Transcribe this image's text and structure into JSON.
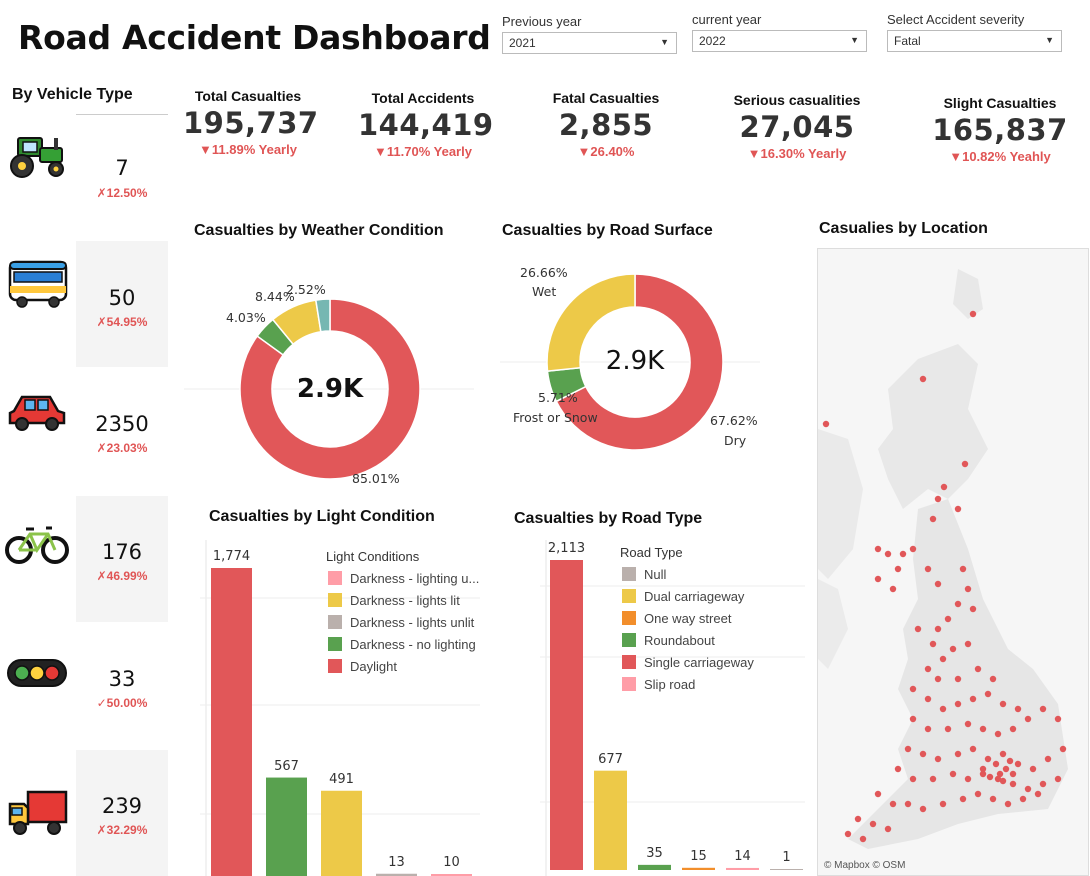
{
  "header": {
    "title": "Road Accident Dashboard"
  },
  "controls": {
    "previous_year": {
      "label": "Previous year",
      "value": "2021"
    },
    "current_year": {
      "label": "current year",
      "value": "2022"
    },
    "severity": {
      "label": "Select Accident severity",
      "value": "Fatal"
    }
  },
  "vehicle_type": {
    "title": "By Vehicle Type",
    "items": [
      {
        "icon": "tractor-icon",
        "value": "7",
        "change": "✗12.50%",
        "color": "#e05555"
      },
      {
        "icon": "bus-icon",
        "value": "50",
        "change": "✗54.95%",
        "color": "#e05555"
      },
      {
        "icon": "car-icon",
        "value": "2350",
        "change": "✗23.03%",
        "color": "#e05555"
      },
      {
        "icon": "bicycle-icon",
        "value": "176",
        "change": "✗46.99%",
        "color": "#e05555"
      },
      {
        "icon": "traffic-light-icon",
        "value": "33",
        "change": "✓50.00%",
        "color": "#e05555"
      },
      {
        "icon": "truck-icon",
        "value": "239",
        "change": "✗32.29%",
        "color": "#e05555"
      }
    ]
  },
  "kpis": [
    {
      "label": "Total Casualties",
      "value": "195,737",
      "change": "▼11.89% Yearly"
    },
    {
      "label": "Total Accidents",
      "value": "144,419",
      "change": "▼11.70% Yearly"
    },
    {
      "label": "Fatal Casualties",
      "value": "2,855",
      "change": "▼26.40%"
    },
    {
      "label": "Serious casualities",
      "value": "27,045",
      "change": "▼16.30% Yearly"
    },
    {
      "label": "Slight Casualties",
      "value": "165,837",
      "change": "▼10.82% Yeahly"
    }
  ],
  "colors": {
    "red": "#e15759",
    "yellow": "#edc948",
    "green": "#59a14f",
    "teal": "#76b7b2",
    "gray": "#bab0ac",
    "orange": "#f28e2b",
    "pink": "#ff9da7",
    "accent_text": "#e05555"
  },
  "charts": {
    "weather": {
      "title": "Casualties by Weather Condition",
      "center": "2.9K"
    },
    "surface": {
      "title": "Casualties by Road Surface",
      "center": "2.9K"
    },
    "light": {
      "title": "Casualties by Light Condition",
      "legend_title": "Light Conditions"
    },
    "road_type": {
      "title": "Casualties by Road Type",
      "legend_title": "Road Type"
    },
    "location": {
      "title": "Casualies by Location",
      "attribution": "© Mapbox  © OSM"
    }
  },
  "chart_data": [
    {
      "type": "pie",
      "title": "Casualties by Weather Condition",
      "center_label": "2.9K",
      "slices": [
        {
          "label": "85.01%",
          "value": 85.01,
          "color": "#e15759"
        },
        {
          "label": "4.03%",
          "value": 4.03,
          "color": "#59a14f"
        },
        {
          "label": "8.44%",
          "value": 8.44,
          "color": "#edc948"
        },
        {
          "label": "2.52%",
          "value": 2.52,
          "color": "#76b7b2"
        }
      ]
    },
    {
      "type": "pie",
      "title": "Casualties by Road Surface",
      "center_label": "2.9K",
      "slices": [
        {
          "label": "67.62%",
          "category": "Dry",
          "value": 67.62,
          "color": "#e15759"
        },
        {
          "label": "5.71%",
          "category": "Frost or  Snow",
          "value": 5.71,
          "color": "#59a14f"
        },
        {
          "label": "26.66%",
          "category": "Wet",
          "value": 26.66,
          "color": "#edc948"
        }
      ]
    },
    {
      "type": "bar",
      "title": "Casualties by Light Condition",
      "legend_title": "Light Conditions",
      "legend": [
        {
          "name": "Darkness - lighting u...",
          "color": "#ff9da7"
        },
        {
          "name": "Darkness - lights lit",
          "color": "#edc948"
        },
        {
          "name": "Darkness - lights unlit",
          "color": "#bab0ac"
        },
        {
          "name": "Darkness - no lighting",
          "color": "#59a14f"
        },
        {
          "name": "Daylight",
          "color": "#e15759"
        }
      ],
      "values": [
        1774,
        567,
        491,
        13,
        10
      ],
      "labels": [
        "1,774",
        "567",
        "491",
        "13",
        "10"
      ],
      "bar_colors": [
        "#e15759",
        "#59a14f",
        "#edc948",
        "#bab0ac",
        "#ff9da7"
      ],
      "ylim": [
        0,
        1774
      ]
    },
    {
      "type": "bar",
      "title": "Casualties by Road Type",
      "legend_title": "Road Type",
      "legend": [
        {
          "name": "Null",
          "color": "#bab0ac"
        },
        {
          "name": "Dual carriageway",
          "color": "#edc948"
        },
        {
          "name": "One way street",
          "color": "#f28e2b"
        },
        {
          "name": "Roundabout",
          "color": "#59a14f"
        },
        {
          "name": "Single carriageway",
          "color": "#e15759"
        },
        {
          "name": "Slip road",
          "color": "#ff9da7"
        }
      ],
      "values": [
        2113,
        677,
        35,
        15,
        14,
        1
      ],
      "labels": [
        "2,113",
        "677",
        "35",
        "15",
        "14",
        "1"
      ],
      "bar_colors": [
        "#e15759",
        "#edc948",
        "#59a14f",
        "#f28e2b",
        "#ff9da7",
        "#bab0ac"
      ],
      "ylim": [
        0,
        2113
      ]
    }
  ]
}
